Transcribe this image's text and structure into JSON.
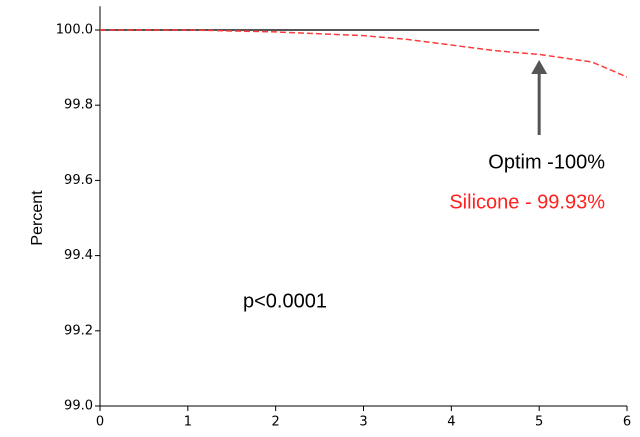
{
  "chart_data": {
    "type": "line",
    "y_label": "Percent",
    "xlim": [
      0,
      6
    ],
    "xticks": [
      0,
      1,
      2,
      3,
      4,
      5,
      6
    ],
    "ylim": [
      99,
      100.05
    ],
    "yticks": [
      {
        "value": 100,
        "label": "100.0"
      },
      99.8,
      99.6,
      99.4,
      99.2,
      {
        "value": 99,
        "label": "99.0"
      }
    ],
    "series": [
      {
        "name": "Optim",
        "color": "#555555",
        "dashed": false,
        "x": [
          0,
          5
        ],
        "values": [
          100,
          100
        ]
      },
      {
        "name": "Silicone",
        "color": "#ff3b3b",
        "dashed": true,
        "x": [
          0,
          1,
          2,
          2.5,
          3,
          3.5,
          4,
          4.5,
          5,
          5.3,
          5.6,
          5.8,
          6
        ],
        "values": [
          100,
          100,
          99.995,
          99.99,
          99.985,
          99.975,
          99.96,
          99.945,
          99.935,
          99.925,
          99.915,
          99.895,
          99.875
        ]
      }
    ],
    "annotations": [
      {
        "text": "Optim -100%",
        "color": "#000000"
      },
      {
        "text": "Silicone - 99.93%",
        "color": "#ff2020"
      },
      {
        "text": "p<0.0001",
        "color": "#000000"
      }
    ]
  }
}
